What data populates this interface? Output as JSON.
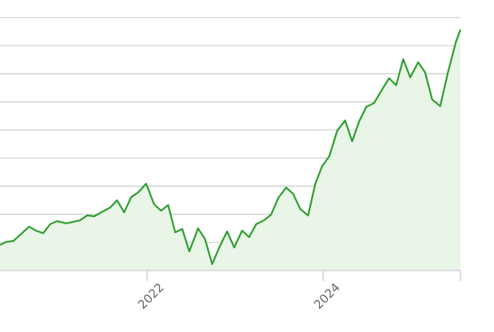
{
  "chart_data": {
    "type": "area",
    "x": [
      2020.33,
      2020.4,
      2020.48,
      2020.58,
      2020.66,
      2020.74,
      2020.82,
      2020.9,
      2020.98,
      2021.08,
      2021.16,
      2021.24,
      2021.32,
      2021.4,
      2021.48,
      2021.58,
      2021.66,
      2021.74,
      2021.82,
      2021.9,
      2021.99,
      2022.08,
      2022.16,
      2022.24,
      2022.32,
      2022.4,
      2022.48,
      2022.58,
      2022.66,
      2022.74,
      2022.82,
      2022.91,
      2022.99,
      2023.08,
      2023.16,
      2023.24,
      2023.33,
      2023.41,
      2023.49,
      2023.58,
      2023.66,
      2023.74,
      2023.83,
      2023.91,
      2023.99,
      2024.07,
      2024.16,
      2024.25,
      2024.33,
      2024.41,
      2024.49,
      2024.58,
      2024.66,
      2024.75,
      2024.83,
      2024.91,
      2024.99,
      2025.08,
      2025.16,
      2025.24,
      2025.33,
      2025.42,
      2025.51,
      2025.56
    ],
    "series": [
      {
        "color": "#2e9e2e",
        "fill": "#e9f5e7",
        "values": [
          0.91,
          1.02,
          1.05,
          1.33,
          1.56,
          1.42,
          1.33,
          1.65,
          1.76,
          1.68,
          1.73,
          1.79,
          1.96,
          1.93,
          2.07,
          2.24,
          2.5,
          2.07,
          2.61,
          2.78,
          3.09,
          2.36,
          2.13,
          2.33,
          1.36,
          1.48,
          0.68,
          1.5,
          1.11,
          0.23,
          0.82,
          1.39,
          0.82,
          1.42,
          1.19,
          1.65,
          1.79,
          1.99,
          2.58,
          2.95,
          2.73,
          2.19,
          1.96,
          3.07,
          3.72,
          4.06,
          4.97,
          5.34,
          4.6,
          5.31,
          5.82,
          5.96,
          6.39,
          6.84,
          6.59,
          7.52,
          6.87,
          7.41,
          7.04,
          6.08,
          5.85,
          7.07,
          8.15,
          8.57
        ]
      }
    ],
    "xlim": [
      2020.33,
      2025.56
    ],
    "xticks": [
      2022,
      2024
    ],
    "ylim": [
      0,
      9
    ],
    "yticks": [
      1,
      2,
      3,
      4,
      5,
      6,
      7,
      8,
      9
    ],
    "grid": true
  }
}
